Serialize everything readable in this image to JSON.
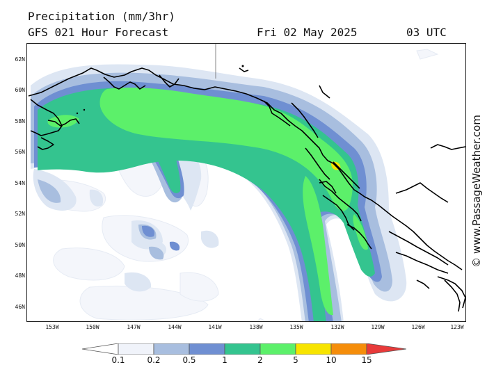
{
  "header": {
    "title": "Precipitation (mm/3hr)",
    "subtitle": "GFS 021 Hour Forecast",
    "date": "Fri 02 May 2025",
    "time": "03 UTC"
  },
  "credit": "© www.PassageWeather.com",
  "map": {
    "lat_labels": [
      "62N",
      "60N",
      "58N",
      "56N",
      "54N",
      "52N",
      "50N",
      "48N",
      "46N"
    ],
    "lon_labels": [
      "153W",
      "150W",
      "147W",
      "144W",
      "141W",
      "138W",
      "135W",
      "132W",
      "129W",
      "126W",
      "123W"
    ],
    "lat_range": [
      45,
      63
    ],
    "lon_range": [
      155,
      122.5
    ]
  },
  "legend": {
    "ticks": [
      "0.1",
      "0.2",
      "0.5",
      "1",
      "2",
      "5",
      "10",
      "15"
    ],
    "colors": {
      "c01": "#f4f6fb",
      "c02": "#dde6f3",
      "c05": "#a8bedf",
      "c1": "#6f8fd2",
      "c2": "#34c48f",
      "c5": "#5cf06a",
      "c10": "#f7e400",
      "c15": "#f58d0a",
      "c20": "#e83a3a"
    }
  }
}
